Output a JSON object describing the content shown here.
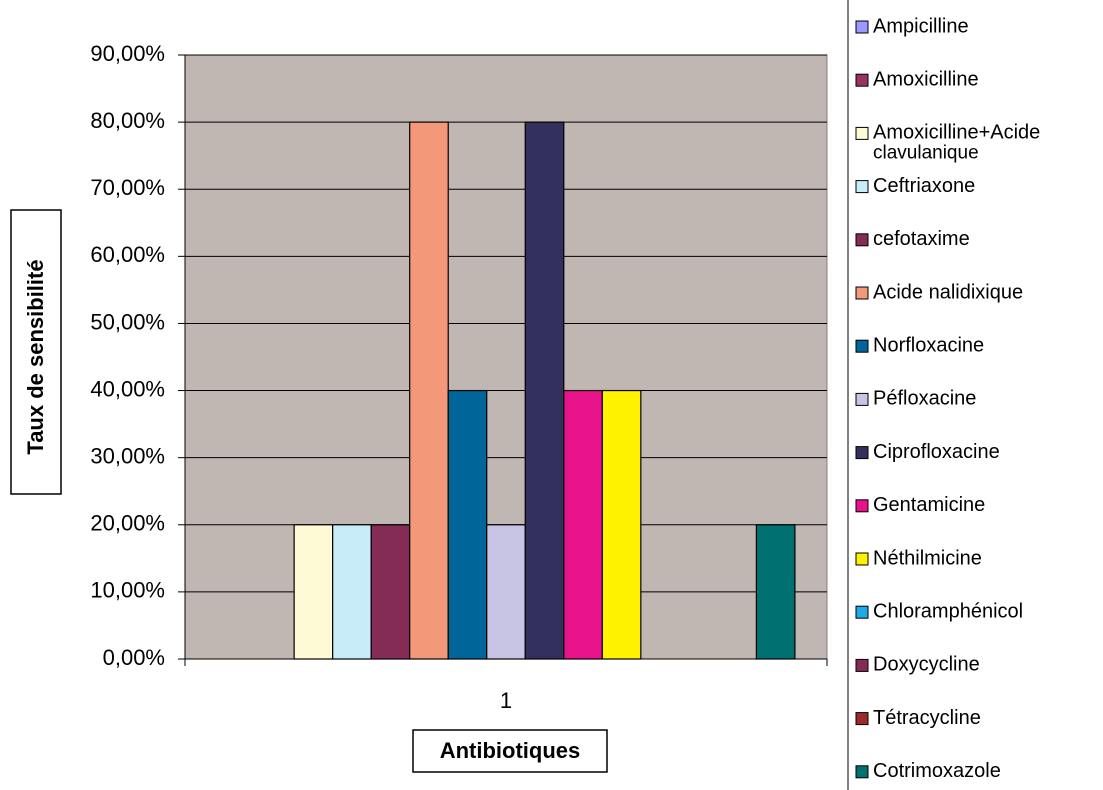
{
  "chart_data": {
    "type": "bar",
    "categories": [
      "1"
    ],
    "x_label": "Antibiotiques",
    "y_label": "Taux de sensibilité",
    "series": [
      {
        "name": "Ampicilline",
        "color": "#9999ff",
        "values": [
          0
        ]
      },
      {
        "name": "Amoxicilline",
        "color": "#993366",
        "values": [
          0
        ]
      },
      {
        "name": "Amoxicilline+Acide clavulanique",
        "color": "#fffad6",
        "values": [
          20
        ]
      },
      {
        "name": "Ceftriaxone",
        "color": "#c8ecf8",
        "values": [
          20
        ]
      },
      {
        "name": "cefotaxime",
        "color": "#842c56",
        "values": [
          20
        ]
      },
      {
        "name": "Acide nalidixique",
        "color": "#f4987a",
        "values": [
          80
        ]
      },
      {
        "name": "Norfloxacine",
        "color": "#006699",
        "values": [
          40
        ]
      },
      {
        "name": "Péfloxacine",
        "color": "#c8c4e4",
        "values": [
          20
        ]
      },
      {
        "name": "Ciprofloxacine",
        "color": "#33305e",
        "values": [
          80
        ]
      },
      {
        "name": "Gentamicine",
        "color": "#e8138a",
        "values": [
          40
        ]
      },
      {
        "name": "Néthilmicine",
        "color": "#fff200",
        "values": [
          40
        ]
      },
      {
        "name": "Chloramphénicol",
        "color": "#1eaae6",
        "values": [
          0
        ]
      },
      {
        "name": "Doxycycline",
        "color": "#842c56",
        "values": [
          0
        ]
      },
      {
        "name": "Tétracycline",
        "color": "#9b2a2a",
        "values": [
          0
        ]
      },
      {
        "name": "Cotrimoxazole",
        "color": "#007070",
        "values": [
          20
        ]
      }
    ],
    "ylim": [
      0,
      90
    ],
    "yticks": [
      {
        "value": 0,
        "label": "0,00%"
      },
      {
        "value": 10,
        "label": "10,00%"
      },
      {
        "value": 20,
        "label": "20,00%"
      },
      {
        "value": 30,
        "label": "30,00%"
      },
      {
        "value": 40,
        "label": "40,00%"
      },
      {
        "value": 50,
        "label": "50,00%"
      },
      {
        "value": 60,
        "label": "60,00%"
      },
      {
        "value": 70,
        "label": "70,00%"
      },
      {
        "value": 80,
        "label": "80,00%"
      },
      {
        "value": 90,
        "label": "90,00%"
      }
    ],
    "grid": true,
    "plot_background": "#c0b6b2"
  }
}
